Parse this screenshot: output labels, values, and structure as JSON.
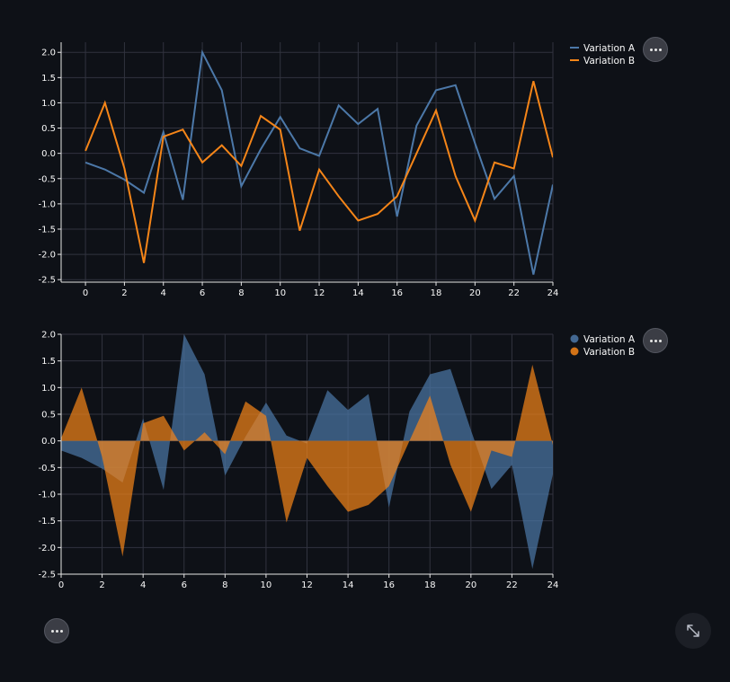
{
  "chart_data": [
    {
      "type": "line",
      "x": [
        0,
        1,
        2,
        3,
        4,
        5,
        6,
        7,
        8,
        9,
        10,
        11,
        12,
        13,
        14,
        15,
        16,
        17,
        18,
        19,
        20,
        21,
        22,
        23,
        24
      ],
      "series": [
        {
          "name": "Variation A",
          "color": "#4c78a8",
          "values": [
            -0.18,
            -0.32,
            -0.52,
            -0.78,
            0.42,
            -0.92,
            2.0,
            1.25,
            -0.65,
            0.08,
            0.72,
            0.1,
            -0.05,
            0.95,
            0.58,
            0.88,
            -1.25,
            0.55,
            1.25,
            1.35,
            0.2,
            -0.9,
            -0.45,
            -2.4,
            -0.62
          ]
        },
        {
          "name": "Variation B",
          "color": "#f58518",
          "values": [
            0.05,
            1.0,
            -0.3,
            -2.17,
            0.33,
            0.47,
            -0.18,
            0.16,
            -0.25,
            0.74,
            0.47,
            -1.53,
            -0.32,
            -0.85,
            -1.33,
            -1.2,
            -0.85,
            0.0,
            0.85,
            -0.45,
            -1.33,
            -0.18,
            -0.3,
            1.43,
            -0.08
          ]
        }
      ],
      "x_ticks": [
        0,
        2,
        4,
        6,
        8,
        10,
        12,
        14,
        16,
        18,
        20,
        22,
        24
      ],
      "y_ticks": [
        2.0,
        1.5,
        1.0,
        0.5,
        0.0,
        -0.5,
        -1.0,
        -1.5,
        -2.0,
        -2.5
      ],
      "xlim": [
        -1.25,
        24
      ],
      "ylim": [
        -2.55,
        2.2
      ],
      "grid": true,
      "legend": "top-right"
    },
    {
      "type": "area",
      "x": [
        0,
        1,
        2,
        3,
        4,
        5,
        6,
        7,
        8,
        9,
        10,
        11,
        12,
        13,
        14,
        15,
        16,
        17,
        18,
        19,
        20,
        21,
        22,
        23,
        24
      ],
      "series": [
        {
          "name": "Variation A",
          "color": "#4c78a8",
          "values": [
            -0.18,
            -0.32,
            -0.52,
            -0.78,
            0.42,
            -0.92,
            2.0,
            1.25,
            -0.65,
            0.08,
            0.72,
            0.1,
            -0.05,
            0.95,
            0.58,
            0.88,
            -1.25,
            0.55,
            1.25,
            1.35,
            0.2,
            -0.9,
            -0.45,
            -2.4,
            -0.62
          ]
        },
        {
          "name": "Variation B",
          "color": "#f58518",
          "values": [
            0.05,
            1.0,
            -0.3,
            -2.17,
            0.33,
            0.47,
            -0.18,
            0.16,
            -0.25,
            0.74,
            0.47,
            -1.53,
            -0.32,
            -0.85,
            -1.33,
            -1.2,
            -0.85,
            0.0,
            0.85,
            -0.45,
            -1.33,
            -0.18,
            -0.3,
            1.43,
            -0.08
          ]
        }
      ],
      "x_ticks": [
        0,
        2,
        4,
        6,
        8,
        10,
        12,
        14,
        16,
        18,
        20,
        22,
        24
      ],
      "y_ticks": [
        2.0,
        1.5,
        1.0,
        0.5,
        0.0,
        -0.5,
        -1.0,
        -1.5,
        -2.0,
        -2.5
      ],
      "xlim": [
        0,
        24
      ],
      "ylim": [
        -2.5,
        2.0
      ],
      "grid": true,
      "legend": "top-right"
    }
  ],
  "icons": {
    "menu": "more-horizontal-icon",
    "fullscreen": "expand-icon"
  }
}
